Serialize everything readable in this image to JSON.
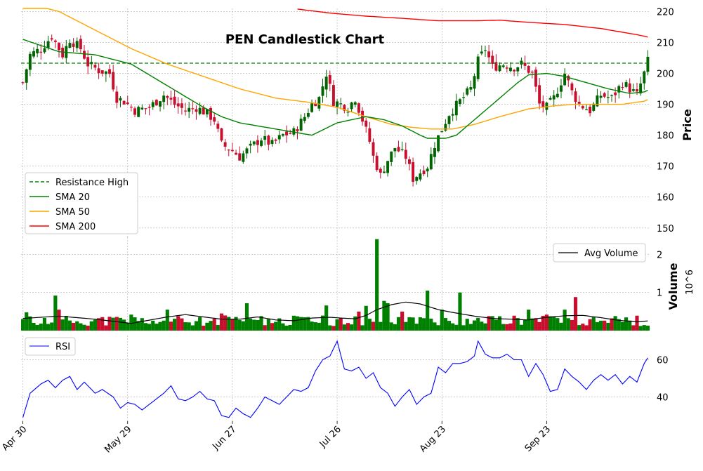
{
  "chart_data": {
    "type": "candlestick",
    "title": "PEN Candlestick Chart",
    "colors": {
      "up": "#006400",
      "down": "#c8102e",
      "sma20": "#008000",
      "sma50": "#ffa500",
      "sma200": "#ff0000",
      "resistance": "#008000",
      "avg_volume": "#000000",
      "rsi": "#0000ff",
      "grid": "#b0b0b0"
    },
    "x_tick_labels": [
      "Apr 30",
      "May 29",
      "Jun 27",
      "Jul 26",
      "Aug 23",
      "Sep 23"
    ],
    "x_tick_indices": [
      0,
      29,
      58,
      87,
      116,
      145
    ],
    "num_days": 174,
    "price_panel": {
      "ylabel": "Price",
      "ylim": [
        147,
        221
      ],
      "yticks": [
        150,
        160,
        170,
        180,
        190,
        200,
        210,
        220
      ],
      "resistance_high": 203.3,
      "legend": [
        "Resistance High",
        "SMA 20",
        "SMA 50",
        "SMA 200"
      ],
      "close_anchors": [
        [
          0,
          197
        ],
        [
          2,
          206
        ],
        [
          5,
          208
        ],
        [
          8,
          212
        ],
        [
          11,
          206
        ],
        [
          13,
          211
        ],
        [
          16,
          208
        ],
        [
          18,
          203
        ],
        [
          21,
          201
        ],
        [
          24,
          200
        ],
        [
          26,
          192
        ],
        [
          28,
          191
        ],
        [
          31,
          188
        ],
        [
          35,
          189
        ],
        [
          39,
          193
        ],
        [
          42,
          190
        ],
        [
          45,
          188
        ],
        [
          48,
          189
        ],
        [
          51,
          187
        ],
        [
          53,
          185
        ],
        [
          55,
          177
        ],
        [
          58,
          175
        ],
        [
          60,
          173
        ],
        [
          63,
          176
        ],
        [
          66,
          179
        ],
        [
          69,
          177
        ],
        [
          72,
          180
        ],
        [
          75,
          181
        ],
        [
          78,
          186
        ],
        [
          80,
          190
        ],
        [
          82,
          192
        ],
        [
          84,
          200
        ],
        [
          86,
          191
        ],
        [
          88,
          190
        ],
        [
          90,
          189
        ],
        [
          92,
          192
        ],
        [
          94,
          185
        ],
        [
          96,
          178
        ],
        [
          97,
          173
        ],
        [
          99,
          167
        ],
        [
          101,
          172
        ],
        [
          103,
          176
        ],
        [
          106,
          173
        ],
        [
          108,
          166
        ],
        [
          110,
          168
        ],
        [
          112,
          170
        ],
        [
          114,
          177
        ],
        [
          116,
          182
        ],
        [
          118,
          187
        ],
        [
          121,
          191
        ],
        [
          124,
          195
        ],
        [
          126,
          204
        ],
        [
          128,
          208
        ],
        [
          130,
          202
        ],
        [
          133,
          203
        ],
        [
          136,
          202
        ],
        [
          138,
          203
        ],
        [
          141,
          200
        ],
        [
          143,
          190
        ],
        [
          145,
          189
        ],
        [
          147,
          192
        ],
        [
          150,
          200
        ],
        [
          152,
          194
        ],
        [
          154,
          190
        ],
        [
          157,
          188
        ],
        [
          160,
          193
        ],
        [
          163,
          192
        ],
        [
          166,
          197
        ],
        [
          168,
          195
        ],
        [
          170,
          193
        ],
        [
          172,
          200
        ],
        [
          174,
          208
        ],
        [
          176,
          211
        ],
        [
          178,
          204
        ],
        [
          180,
          203
        ],
        [
          181,
          206
        ]
      ],
      "sma20_anchors": [
        [
          0,
          211
        ],
        [
          10,
          207
        ],
        [
          20,
          206
        ],
        [
          30,
          203
        ],
        [
          40,
          196
        ],
        [
          50,
          189
        ],
        [
          55,
          186
        ],
        [
          60,
          184
        ],
        [
          70,
          182
        ],
        [
          80,
          180
        ],
        [
          87,
          184
        ],
        [
          95,
          186
        ],
        [
          100,
          185
        ],
        [
          105,
          183
        ],
        [
          110,
          180
        ],
        [
          112,
          179
        ],
        [
          117,
          179
        ],
        [
          120,
          180
        ],
        [
          126,
          186
        ],
        [
          130,
          190
        ],
        [
          137,
          197
        ],
        [
          140,
          199.5
        ],
        [
          145,
          200
        ],
        [
          150,
          199
        ],
        [
          156,
          197
        ],
        [
          162,
          195
        ],
        [
          168,
          193.5
        ],
        [
          172,
          194
        ],
        [
          176,
          196
        ],
        [
          181,
          197
        ]
      ],
      "sma50_anchors": [
        [
          0,
          223
        ],
        [
          10,
          220
        ],
        [
          20,
          214
        ],
        [
          30,
          208
        ],
        [
          40,
          203
        ],
        [
          50,
          199
        ],
        [
          60,
          195
        ],
        [
          70,
          192
        ],
        [
          80,
          190.5
        ],
        [
          87,
          189
        ],
        [
          95,
          186
        ],
        [
          102,
          183.5
        ],
        [
          108,
          182.5
        ],
        [
          113,
          182
        ],
        [
          119,
          182
        ],
        [
          125,
          183.5
        ],
        [
          132,
          186
        ],
        [
          140,
          188.5
        ],
        [
          147,
          189.5
        ],
        [
          153,
          190
        ],
        [
          160,
          190
        ],
        [
          166,
          190
        ],
        [
          172,
          191
        ],
        [
          178,
          194
        ],
        [
          181,
          195.5
        ]
      ],
      "sma200_anchors": [
        [
          76,
          220.8
        ],
        [
          85,
          219.5
        ],
        [
          95,
          218.5
        ],
        [
          105,
          217.8
        ],
        [
          115,
          217
        ],
        [
          125,
          217
        ],
        [
          132,
          217.2
        ],
        [
          140,
          216.5
        ],
        [
          150,
          215.8
        ],
        [
          160,
          214.5
        ],
        [
          170,
          212.5
        ],
        [
          176,
          211
        ],
        [
          181,
          210.5
        ]
      ]
    },
    "volume_panel": {
      "ylabel": "Volume",
      "unit_label": "10^6",
      "ylim": [
        0,
        2.45
      ],
      "yticks": [
        1,
        2
      ],
      "legend": [
        "Avg Volume"
      ],
      "spikes": [
        [
          1,
          0.48
        ],
        [
          9,
          0.92
        ],
        [
          10,
          0.55
        ],
        [
          30,
          0.42
        ],
        [
          40,
          0.55
        ],
        [
          55,
          0.45
        ],
        [
          62,
          0.72
        ],
        [
          78,
          0.35
        ],
        [
          84,
          0.66
        ],
        [
          93,
          0.5
        ],
        [
          95,
          0.65
        ],
        [
          98,
          2.4
        ],
        [
          100,
          0.78
        ],
        [
          101,
          0.72
        ],
        [
          105,
          0.5
        ],
        [
          110,
          0.35
        ],
        [
          112,
          1.05
        ],
        [
          116,
          0.55
        ],
        [
          121,
          1.0
        ],
        [
          130,
          0.38
        ],
        [
          140,
          0.55
        ],
        [
          145,
          0.42
        ],
        [
          150,
          0.55
        ],
        [
          153,
          0.88
        ],
        [
          158,
          0.35
        ],
        [
          178,
          0.62
        ],
        [
          179,
          0.38
        ]
      ],
      "avg_anchors": [
        [
          0,
          0.32
        ],
        [
          10,
          0.38
        ],
        [
          20,
          0.3
        ],
        [
          30,
          0.19
        ],
        [
          40,
          0.36
        ],
        [
          45,
          0.42
        ],
        [
          50,
          0.36
        ],
        [
          55,
          0.3
        ],
        [
          60,
          0.3
        ],
        [
          65,
          0.36
        ],
        [
          70,
          0.28
        ],
        [
          75,
          0.26
        ],
        [
          80,
          0.33
        ],
        [
          85,
          0.35
        ],
        [
          88,
          0.33
        ],
        [
          92,
          0.31
        ],
        [
          95,
          0.4
        ],
        [
          98,
          0.55
        ],
        [
          102,
          0.68
        ],
        [
          106,
          0.75
        ],
        [
          110,
          0.7
        ],
        [
          115,
          0.55
        ],
        [
          120,
          0.46
        ],
        [
          125,
          0.38
        ],
        [
          130,
          0.32
        ],
        [
          135,
          0.3
        ],
        [
          140,
          0.28
        ],
        [
          145,
          0.35
        ],
        [
          150,
          0.39
        ],
        [
          155,
          0.4
        ],
        [
          160,
          0.34
        ],
        [
          165,
          0.27
        ],
        [
          170,
          0.23
        ],
        [
          175,
          0.27
        ],
        [
          181,
          0.26
        ]
      ]
    },
    "rsi_panel": {
      "ylim": [
        27,
        73
      ],
      "yticks": [
        40,
        60
      ],
      "legend": [
        "RSI"
      ],
      "anchors": [
        [
          0,
          29
        ],
        [
          2,
          42
        ],
        [
          5,
          47
        ],
        [
          7,
          49
        ],
        [
          9,
          45
        ],
        [
          11,
          49
        ],
        [
          13,
          51
        ],
        [
          15,
          44
        ],
        [
          17,
          48
        ],
        [
          20,
          42
        ],
        [
          22,
          44
        ],
        [
          25,
          40
        ],
        [
          27,
          34
        ],
        [
          29,
          37
        ],
        [
          31,
          36
        ],
        [
          33,
          33
        ],
        [
          35,
          36
        ],
        [
          37,
          39
        ],
        [
          39,
          42
        ],
        [
          41,
          46
        ],
        [
          43,
          39
        ],
        [
          45,
          38
        ],
        [
          47,
          40
        ],
        [
          49,
          43
        ],
        [
          51,
          39
        ],
        [
          53,
          38
        ],
        [
          55,
          30
        ],
        [
          57,
          29
        ],
        [
          59,
          34
        ],
        [
          61,
          31
        ],
        [
          63,
          29
        ],
        [
          65,
          34
        ],
        [
          67,
          40
        ],
        [
          69,
          38
        ],
        [
          71,
          36
        ],
        [
          73,
          40
        ],
        [
          75,
          44
        ],
        [
          77,
          43
        ],
        [
          79,
          45
        ],
        [
          81,
          54
        ],
        [
          83,
          60
        ],
        [
          85,
          62
        ],
        [
          87,
          70
        ],
        [
          89,
          55
        ],
        [
          91,
          54
        ],
        [
          93,
          56
        ],
        [
          95,
          50
        ],
        [
          97,
          53
        ],
        [
          99,
          45
        ],
        [
          101,
          42
        ],
        [
          103,
          35
        ],
        [
          105,
          40
        ],
        [
          107,
          44
        ],
        [
          109,
          36
        ],
        [
          111,
          40
        ],
        [
          113,
          42
        ],
        [
          115,
          56
        ],
        [
          117,
          53
        ],
        [
          119,
          58
        ],
        [
          121,
          58
        ],
        [
          123,
          59
        ],
        [
          125,
          62
        ],
        [
          126,
          70
        ],
        [
          128,
          63
        ],
        [
          130,
          61
        ],
        [
          132,
          61
        ],
        [
          134,
          63
        ],
        [
          136,
          60
        ],
        [
          138,
          60
        ],
        [
          140,
          51
        ],
        [
          142,
          58
        ],
        [
          144,
          52
        ],
        [
          146,
          43
        ],
        [
          148,
          44
        ],
        [
          150,
          55
        ],
        [
          152,
          51
        ],
        [
          154,
          48
        ],
        [
          156,
          44
        ],
        [
          158,
          49
        ],
        [
          160,
          52
        ],
        [
          162,
          49
        ],
        [
          164,
          52
        ],
        [
          166,
          47
        ],
        [
          168,
          51
        ],
        [
          170,
          48
        ],
        [
          172,
          58
        ],
        [
          174,
          64
        ],
        [
          176,
          58
        ],
        [
          178,
          55
        ],
        [
          180,
          57
        ],
        [
          181,
          60
        ]
      ]
    }
  }
}
